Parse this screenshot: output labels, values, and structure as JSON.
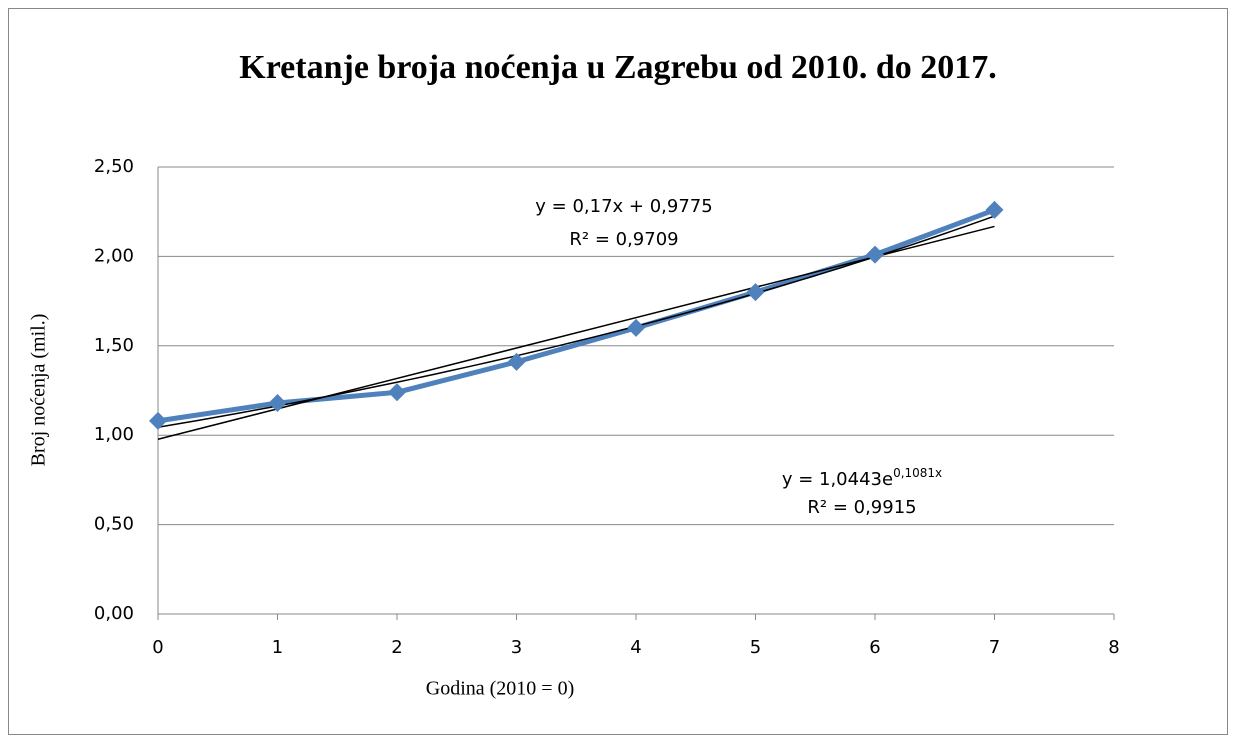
{
  "chart_data": {
    "type": "line",
    "title": "Kretanje broja noćenja u Zagrebu od 2010. do 2017.",
    "x_label": "Godina (2010 = 0)",
    "y_label": "Broj noćenja (mil.)",
    "x": [
      0,
      1,
      2,
      3,
      4,
      5,
      6,
      7
    ],
    "series": [
      {
        "name": "Broj noćenja",
        "color": "#4f81bd",
        "values": [
          1.08,
          1.18,
          1.24,
          1.41,
          1.6,
          1.8,
          2.01,
          2.26
        ]
      }
    ],
    "xlim": [
      0,
      8
    ],
    "xticks": [
      0,
      1,
      2,
      3,
      4,
      5,
      6,
      7,
      8
    ],
    "ylim": [
      0,
      2.5
    ],
    "yticks": [
      {
        "value": 0,
        "label": "0,00"
      },
      {
        "value": 0.5,
        "label": "0,50"
      },
      {
        "value": 1,
        "label": "1,00"
      },
      {
        "value": 1.5,
        "label": "1,50"
      },
      {
        "value": 2,
        "label": "2,00"
      },
      {
        "value": 2.5,
        "label": "2,50"
      }
    ],
    "grid": true,
    "trendlines": [
      {
        "kind": "linear",
        "slope": 0.17,
        "intercept": 0.9775,
        "equation": "y = 0,17x + 0,9775",
        "r2": "R² = 0,9709",
        "color": "#000000"
      },
      {
        "kind": "exponential",
        "coefficient": 1.0443,
        "rate": 0.1081,
        "equation": "y = 1,0443e",
        "exponent": "0,1081x",
        "r2": "R² = 0,9915",
        "color": "#000000"
      }
    ]
  }
}
